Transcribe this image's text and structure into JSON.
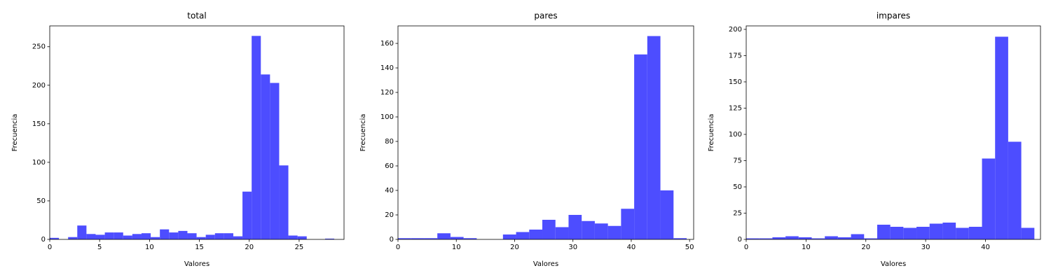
{
  "chart_data": [
    {
      "type": "histogram",
      "title": "total",
      "xlabel": "Valores",
      "ylabel": "Frecuencia",
      "color": "#4d4dff",
      "bins": [
        0,
        0.92,
        1.84,
        2.76,
        3.68,
        4.6,
        5.52,
        6.44,
        7.36,
        8.28,
        9.2,
        10.12,
        11.04,
        11.96,
        12.88,
        13.8,
        14.72,
        15.64,
        16.56,
        17.48,
        18.4,
        19.32,
        20.24,
        21.16,
        22.08,
        23,
        23.92,
        24.84,
        25.76,
        26.68,
        27.6,
        28.52
      ],
      "values": [
        2,
        0,
        3,
        18,
        7,
        6,
        9,
        9,
        5,
        7,
        8,
        3,
        13,
        9,
        11,
        8,
        3,
        6,
        8,
        8,
        4,
        62,
        264,
        214,
        203,
        96,
        5,
        4,
        0,
        0,
        1
      ],
      "xlim": [
        0,
        29.5
      ],
      "ylim": [
        0,
        277
      ],
      "xticks": [
        0,
        5,
        10,
        15,
        20,
        25
      ],
      "yticks": [
        0,
        50,
        100,
        150,
        200,
        250
      ]
    },
    {
      "type": "histogram",
      "title": "pares",
      "xlabel": "Valores",
      "ylabel": "Frecuencia",
      "color": "#4d4dff",
      "bins": [
        0,
        2.25,
        4.5,
        6.75,
        9,
        11.25,
        13.5,
        15.75,
        18,
        20.25,
        22.5,
        24.75,
        27,
        29.25,
        31.5,
        33.75,
        36,
        38.25,
        40.5,
        42.75,
        45,
        47.25,
        49.5
      ],
      "values": [
        1,
        1,
        1,
        5,
        2,
        1,
        0,
        0,
        4,
        6,
        8,
        16,
        10,
        20,
        15,
        13,
        11,
        25,
        151,
        166,
        40,
        1
      ],
      "xlim": [
        0,
        50.7
      ],
      "ylim": [
        0,
        174.3
      ],
      "xticks": [
        0,
        10,
        20,
        30,
        40,
        50
      ],
      "yticks": [
        0,
        20,
        40,
        60,
        80,
        100,
        120,
        140,
        160
      ]
    },
    {
      "type": "histogram",
      "title": "impares",
      "xlabel": "Valores",
      "ylabel": "Frecuencia",
      "color": "#4d4dff",
      "bins": [
        0,
        2.19,
        4.38,
        6.57,
        8.76,
        10.95,
        13.14,
        15.33,
        17.52,
        19.71,
        21.9,
        24.09,
        26.28,
        28.47,
        30.66,
        32.85,
        35.04,
        37.23,
        39.42,
        41.61,
        43.8,
        45.99,
        48.18
      ],
      "values": [
        1,
        1,
        2,
        3,
        2,
        1,
        3,
        2,
        5,
        1,
        14,
        12,
        11,
        12,
        15,
        16,
        11,
        12,
        77,
        193,
        93,
        11
      ],
      "xlim": [
        0,
        49.2
      ],
      "ylim": [
        0,
        203.3
      ],
      "xticks": [
        0,
        10,
        20,
        30,
        40
      ],
      "yticks": [
        0,
        25,
        50,
        75,
        100,
        125,
        150,
        175,
        200
      ]
    }
  ]
}
